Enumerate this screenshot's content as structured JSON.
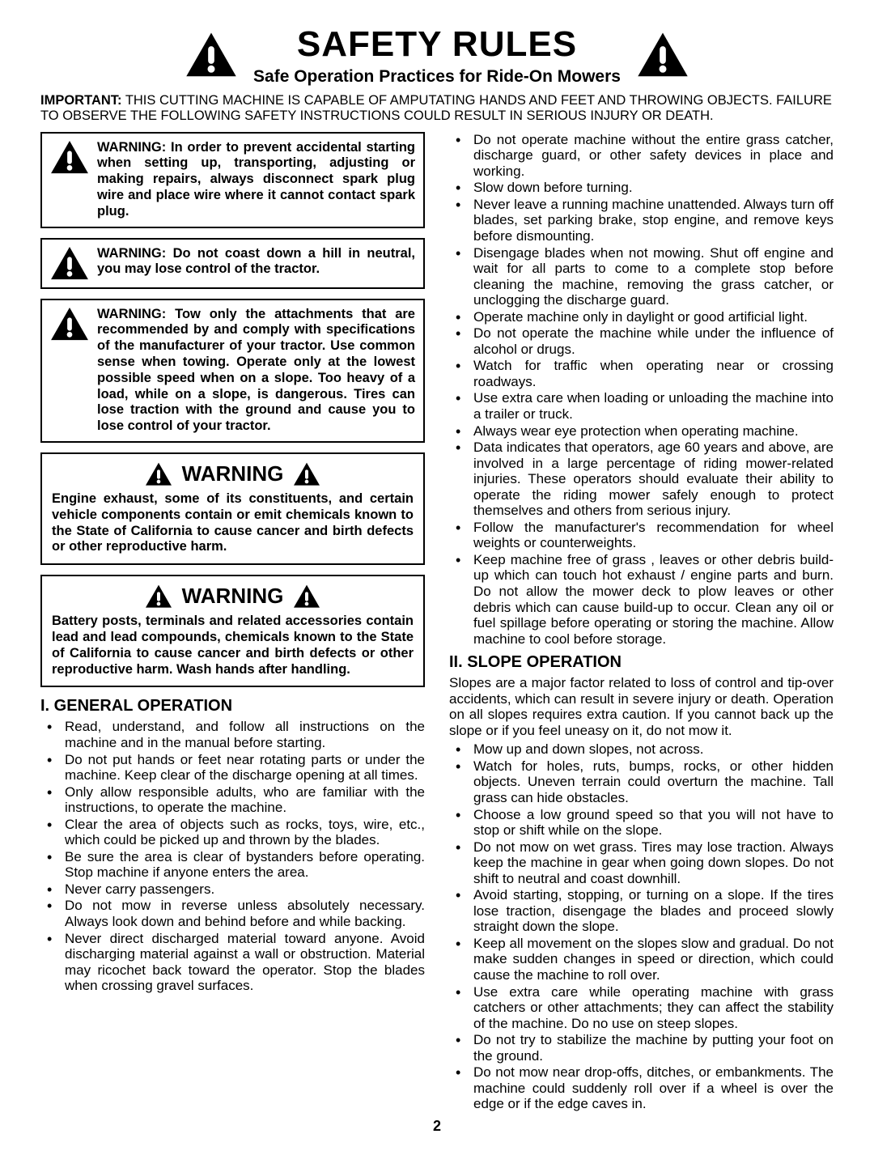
{
  "header": {
    "title": "SAFETY RULES",
    "subtitle": "Safe Operation Practices for Ride-On Mowers"
  },
  "important": {
    "label": "IMPORTANT:",
    "text": "THIS CUTTING MACHINE IS CAPABLE OF AMPUTATING HANDS AND FEET AND THROWING OBJECTS. FAILURE TO OBSERVE THE FOLLOWING SAFETY INSTRUCTIONS COULD RESULT IN SERIOUS INJURY OR DEATH."
  },
  "warning_boxes": [
    "WARNING: In order to prevent accidental starting when setting up, transporting, adjusting or making repairs, always disconnect spark plug wire and place wire where it cannot contact spark plug.",
    "WARNING: Do not coast down a hill in neutral, you may lose control of the tractor.",
    "WARNING: Tow only the attachments that are recommended by and comply with specifications of the manufacturer of your tractor. Use common sense when towing. Operate only at the lowest possible speed when on a slope. Too heavy of a load, while on a slope, is dangerous. Tires can lose traction with the ground and cause you to lose control of your tractor."
  ],
  "warning_header_label": "WARNING",
  "warning_header_boxes": [
    "Engine exhaust, some of its constituents, and certain vehicle components contain or emit chemicals known to the State of California to cause cancer and birth defects or other reproductive harm.",
    "Battery posts, terminals and related accessories contain lead and lead compounds, chemicals known to the State of California to cause cancer and birth defects or other reproductive harm. Wash hands after handling."
  ],
  "sections": {
    "general": {
      "heading": "I. GENERAL OPERATION",
      "bullets_a": [
        "Read, understand, and follow all instructions on the machine and in the manual before starting.",
        "Do not put hands or feet near rotating parts or under the machine. Keep clear of the discharge opening at all times.",
        "Only allow responsible adults, who are familiar with the instructions, to operate the machine.",
        "Clear the area of objects such as rocks, toys, wire, etc., which could be picked up and thrown by the blades.",
        "Be sure the area is clear of bystanders before operating. Stop machine if anyone enters the area.",
        "Never carry passengers.",
        "Do not mow in reverse unless absolutely necessary. Always look down and behind before and while backing.",
        "Never direct discharged material toward anyone. Avoid discharging material against a wall or obstruction. Material may ricochet back toward the operator. Stop the blades when crossing gravel surfaces."
      ],
      "bullets_b": [
        "Do not operate machine without the entire grass catcher, discharge guard, or other safety devices in place and working.",
        "Slow down before turning.",
        "Never leave a running machine unattended. Always turn off blades, set parking brake, stop engine, and remove keys before dismounting.",
        "Disengage blades when not mowing. Shut off engine and wait for all parts to come to a complete stop before cleaning the machine, removing the grass catcher, or unclogging the discharge guard.",
        "Operate machine only in daylight or good artificial light.",
        "Do not operate the machine while under the influence of alcohol or drugs.",
        "Watch for traffic when operating near or crossing roadways.",
        "Use extra care when loading or unloading the machine into a trailer or truck.",
        "Always wear eye protection when operating machine.",
        "Data indicates that operators, age 60 years and above, are involved in a large percentage of riding mower-related injuries. These operators should evaluate their ability to operate the riding mower safely enough to protect themselves and others from serious injury.",
        "Follow the manufacturer's recommendation for wheel weights or counterweights.",
        "Keep machine free of grass , leaves or other debris build-up which can touch hot exhaust / engine parts and burn. Do not allow the mower deck to plow leaves or other debris which can cause build-up to occur. Clean any oil or fuel spillage before operating or storing the machine. Allow machine to cool before storage."
      ]
    },
    "slope": {
      "heading": "II. SLOPE OPERATION",
      "intro": "Slopes are a major factor related to loss of control and tip-over accidents, which can result in severe injury or death. Operation on all slopes requires extra caution. If you cannot back up the slope or if you feel uneasy on it, do not mow it.",
      "bullets": [
        "Mow up and down slopes, not across.",
        "Watch for holes, ruts, bumps, rocks, or other hidden objects. Uneven terrain could overturn the machine. Tall grass can hide obstacles.",
        "Choose a low ground speed so that you will not have to stop or shift while on the slope.",
        "Do not mow on wet grass. Tires may lose traction. Always keep the machine in gear when going down slopes. Do not shift to neutral and coast downhill.",
        "Avoid starting, stopping, or turning on a slope. If the tires lose traction, disengage the blades and proceed slowly straight down the slope.",
        "Keep all movement on the slopes slow and gradual. Do not make sudden changes in speed or direction, which could cause the machine to roll over.",
        "Use extra care while operating machine with grass catchers or other attachments; they can affect the stability of the machine. Do no use on steep slopes.",
        "Do not try to stabilize the machine by putting your foot on the ground.",
        "Do not mow near drop-offs, ditches, or embankments. The machine could suddenly roll over if a wheel is over the edge or if the edge caves in."
      ]
    }
  },
  "page_number": "2",
  "icon_sizes": {
    "large": 56,
    "medium": 48,
    "small": 34
  },
  "colors": {
    "text": "#000000",
    "bg": "#ffffff",
    "border": "#000000"
  }
}
